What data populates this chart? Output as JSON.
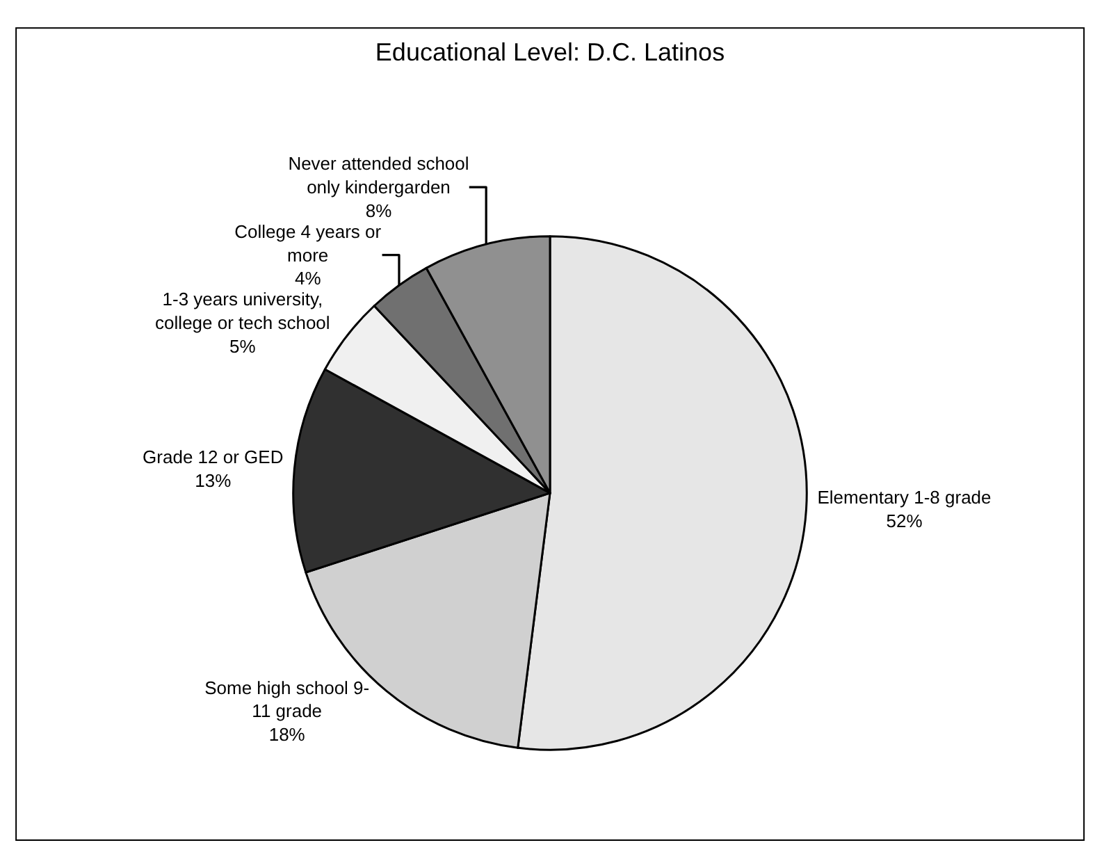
{
  "chart_data": {
    "type": "pie",
    "title": "Educational Level: D.C. Latinos",
    "categories": [
      "Elementary 1-8 grade",
      "Some high school 9-\n11 grade",
      "Grade 12 or GED",
      "1-3 years university,\ncollege or tech school",
      "College 4 years or\nmore",
      "Never attended school\nonly kindergarden"
    ],
    "values": [
      52,
      18,
      13,
      5,
      4,
      8
    ],
    "value_labels": [
      "52%",
      "18%",
      "13%",
      "5%",
      "4%",
      "8%"
    ],
    "colors": [
      "#e6e6e6",
      "#d0d0d0",
      "#303030",
      "#f0f0f0",
      "#707070",
      "#909090"
    ],
    "legend": false
  }
}
